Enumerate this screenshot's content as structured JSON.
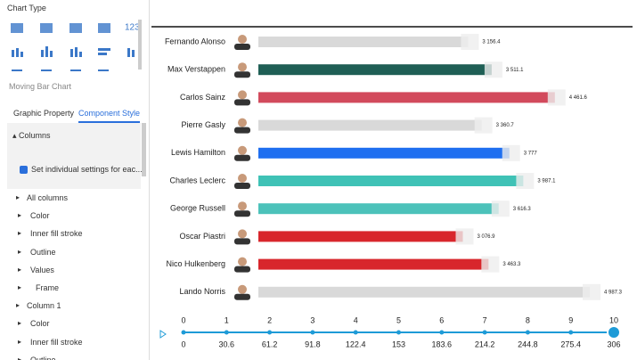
{
  "panel": {
    "chart_type_label": "Chart Type",
    "icon_text": "123",
    "chart_name": "Moving Bar Chart",
    "tabs": [
      "Graphic Property",
      "Component Style"
    ],
    "section": "Columns",
    "checkbox_label": "Set individual settings for eac...",
    "tree": [
      "All columns",
      "Color",
      "Inner fill stroke",
      "Outline",
      "Values",
      "Frame",
      "Column 1",
      "Color",
      "Inner fill stroke",
      "Outline"
    ]
  },
  "chart_data": {
    "type": "bar",
    "categories": [
      "Fernando Alonso",
      "Max Verstappen",
      "Carlos Sainz",
      "Pierre Gasly",
      "Lewis Hamilton",
      "Charles Leclerc",
      "George Russell",
      "Oscar Piastri",
      "Nico Hulkenberg",
      "Lando Norris"
    ],
    "values": [
      3156.4,
      3511.1,
      4461.6,
      3360.7,
      3777,
      3987.1,
      3616.3,
      3076.9,
      3463.3,
      4987.3
    ],
    "value_labels": [
      "3 156.4",
      "3 511.1",
      "4 461.6",
      "3 360.7",
      "3 777",
      "3 987.1",
      "3 616.3",
      "3 076.9",
      "3 463.3",
      "4 987.3"
    ],
    "colors": [
      "#d9d9d9",
      "#1f5f55",
      "#d24a5c",
      "#d9d9d9",
      "#1f6ff0",
      "#3fc2b6",
      "#4cc2ba",
      "#d8262c",
      "#d8262c",
      "#d9d9d9"
    ]
  },
  "timeline": {
    "steps": [
      0,
      1,
      2,
      3,
      4,
      5,
      6,
      7,
      8,
      9,
      10
    ],
    "labels": [
      0,
      30.6,
      61.2,
      91.8,
      122.4,
      153,
      183.6,
      214.2,
      244.8,
      275.4,
      306
    ]
  }
}
